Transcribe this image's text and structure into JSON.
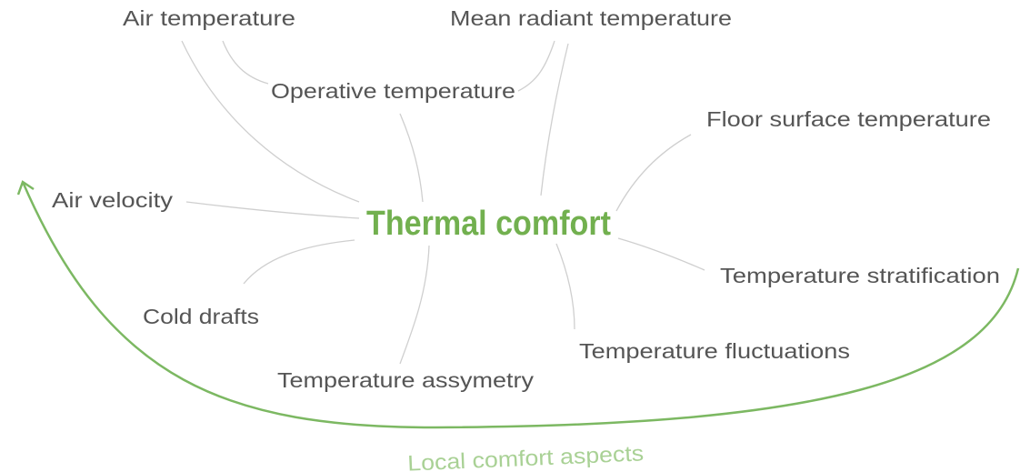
{
  "center": "Thermal comfort",
  "nodes": [
    {
      "label": "Air temperature"
    },
    {
      "label": "Mean radiant temperature"
    },
    {
      "label": "Operative temperature"
    },
    {
      "label": "Floor surface temperature"
    },
    {
      "label": "Air velocity"
    },
    {
      "label": "Temperature stratification"
    },
    {
      "label": "Cold drafts"
    },
    {
      "label": "Temperature fluctuations"
    },
    {
      "label": "Temperature assymetry"
    }
  ],
  "cycle_label": "Local comfort aspects"
}
